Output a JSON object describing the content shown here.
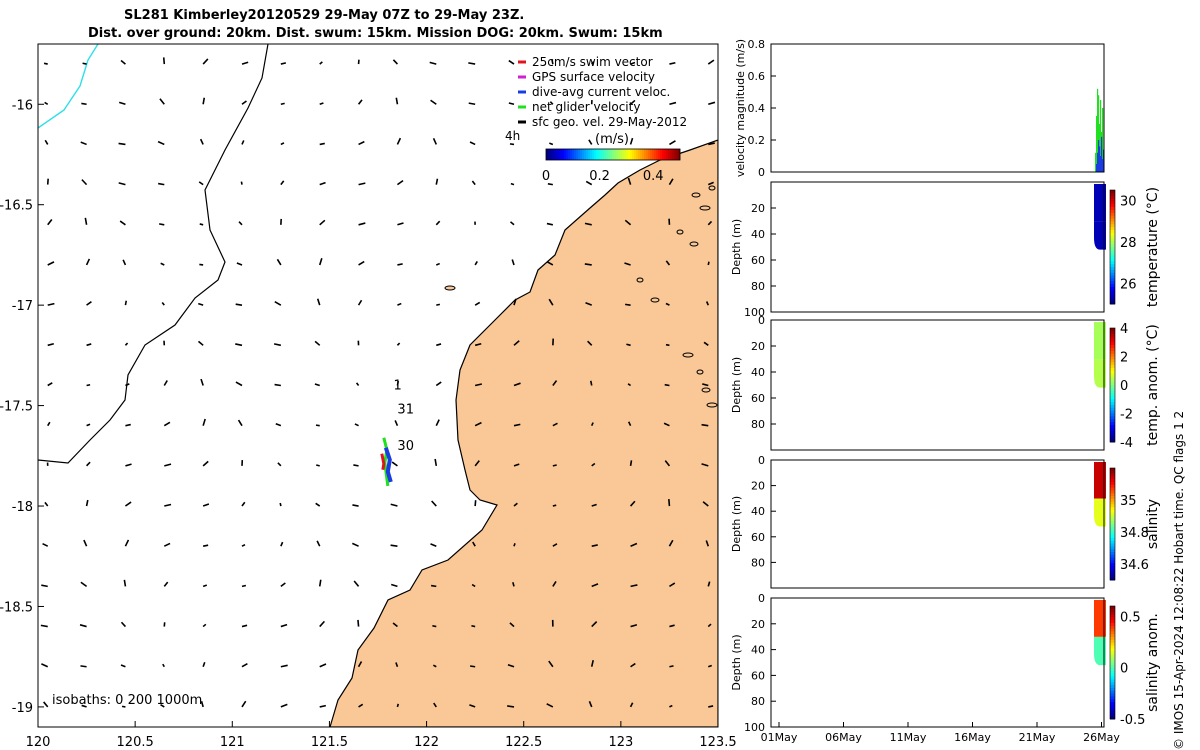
{
  "header": {
    "title_line1": "SL281 Kimberley20120529 29-May 07Z to 29-May 23Z.",
    "title_line2": "Dist. over ground: 20km. Dist. swum: 15km. Mission DOG: 20km. Swum: 15km"
  },
  "colors": {
    "land": "#f9c896",
    "swim": "#e0141e",
    "gps": "#d020d0",
    "current": "#1a3ce0",
    "net": "#20e020",
    "geo": "#000000"
  },
  "chart_data": [
    {
      "type": "map",
      "xlim": [
        120,
        123.5
      ],
      "ylim": [
        -19.1,
        -15.7
      ],
      "xticks": [
        "120",
        "120.5",
        "121",
        "121.5",
        "122",
        "122.5",
        "123",
        "123.5"
      ],
      "yticks": [
        "-16",
        "-16.5",
        "-17",
        "-17.5",
        "-18",
        "-18.5",
        "-19"
      ],
      "legend": {
        "location": "top-right",
        "entries": [
          "25cm/s swim vector",
          "GPS surface velocity",
          "dive-avg current veloc.",
          "net glider velocity",
          "sfc geo. vel. 29-May-2012"
        ],
        "time_label": "4h"
      },
      "colorbar": {
        "label": "(m/s)",
        "ticks": [
          "0",
          "0.2",
          "0.4"
        ],
        "range": [
          0,
          0.5
        ]
      },
      "isobaths_label": "isobaths: 0   200  1000m",
      "track_labels": [
        {
          "text": "1",
          "lon": 121.83,
          "lat": -17.42
        },
        {
          "text": "31",
          "lon": 121.85,
          "lat": -17.54
        },
        {
          "text": "30",
          "lon": 121.85,
          "lat": -17.72
        }
      ],
      "glider_track": {
        "lon": 121.78,
        "lat_start": -17.66,
        "lat_end": -17.9
      },
      "geo_velocity_grid": {
        "lon_start": 120.05,
        "lon_step": 0.2,
        "lat_start": -15.8,
        "lat_step": -0.2
      }
    },
    {
      "type": "bar",
      "ylabel": "velocity magnitude (m/s)",
      "ylim": [
        0,
        0.8
      ],
      "yticks": [
        "0",
        "0.2",
        "0.4",
        "0.6",
        "0.8"
      ],
      "series": [
        {
          "name": "net glider velocity",
          "values": [
            0.12,
            0.35,
            0.52,
            0.48,
            0.3,
            0.45,
            0.25,
            0.4
          ]
        },
        {
          "name": "dive-avg current veloc.",
          "values": [
            0.05,
            0.12,
            0.2,
            0.16,
            0.1,
            0.22,
            0.08,
            0.14
          ]
        }
      ]
    },
    {
      "type": "heatmap",
      "ylabel": "Depth (m)",
      "colorbar_label": "temperature (°C)",
      "ylim": [
        0,
        100
      ],
      "yticks": [
        "20",
        "40",
        "60",
        "80",
        "100"
      ],
      "clim": [
        25,
        30.5
      ],
      "cticks": [
        "30",
        "28",
        "26"
      ],
      "profile_value": 25.3
    },
    {
      "type": "heatmap",
      "ylabel": "Depth (m)",
      "colorbar_label": "temp. anom. (°C)",
      "ylim": [
        0,
        100
      ],
      "yticks": [
        "0",
        "20",
        "40",
        "60",
        "80"
      ],
      "clim": [
        -4,
        4
      ],
      "cticks": [
        "4",
        "2",
        "0",
        "-2",
        "-4"
      ],
      "profile_value": 0.3
    },
    {
      "type": "heatmap",
      "ylabel": "Depth (m)",
      "colorbar_label": "salinity",
      "ylim": [
        0,
        100
      ],
      "yticks": [
        "0",
        "20",
        "40",
        "60",
        "80"
      ],
      "clim": [
        34.5,
        35.2
      ],
      "cticks": [
        "35",
        "34.8",
        "34.6"
      ],
      "profile_value": 35.15
    },
    {
      "type": "heatmap",
      "ylabel": "Depth (m)",
      "colorbar_label": "salinity anom.",
      "ylim": [
        0,
        100
      ],
      "yticks": [
        "0",
        "20",
        "40",
        "60",
        "80",
        "100"
      ],
      "clim": [
        -0.5,
        0.6
      ],
      "cticks": [
        "0.5",
        "0",
        "-0.5"
      ],
      "profile_value": 0.4,
      "xticks": [
        "01May",
        "06May",
        "11May",
        "16May",
        "21May",
        "26May"
      ]
    }
  ],
  "footer": {
    "copyright": "© IMOS 15-Apr-2024 12:08:22 Hobart time. QC flags 1  2"
  }
}
